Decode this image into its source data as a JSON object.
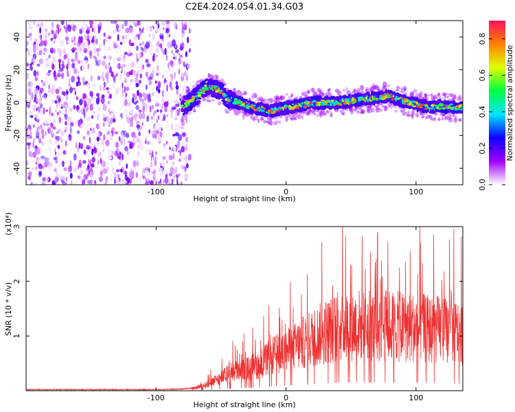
{
  "title": "C2E4.2024.054.01.34.G03",
  "chart_data": [
    {
      "type": "heatmap",
      "panel": "spectrogram",
      "xlabel": "Height of straight line (km)",
      "ylabel": "Frequency (Hz)",
      "xlim": [
        -200,
        136
      ],
      "ylim": [
        -50,
        50
      ],
      "x_ticks": [
        -100,
        0,
        100
      ],
      "y_ticks": [
        -40,
        -20,
        0,
        20,
        40
      ],
      "x_tick_labels": [
        "-100",
        "0",
        "100"
      ],
      "y_tick_labels": [
        "-40",
        "-20",
        "0",
        "20",
        "40"
      ],
      "noise_region_x": [
        -200,
        -80
      ],
      "ridge": {
        "x": [
          -80,
          -70,
          -62,
          -55,
          -50,
          -45,
          -40,
          -30,
          -20,
          -10,
          0,
          10,
          20,
          30,
          40,
          50,
          60,
          70,
          80,
          90,
          100,
          110,
          120,
          130,
          136
        ],
        "y": [
          -3,
          3,
          9,
          9,
          7,
          2,
          1,
          -2,
          -4,
          -5,
          -3,
          -2,
          0,
          0,
          0,
          1,
          2,
          3,
          4,
          1,
          -1,
          -3,
          -2,
          -3,
          -3
        ]
      },
      "colorbar": {
        "label": "Normalized spectral amplitude",
        "range": [
          0,
          0.9
        ],
        "ticks": [
          0,
          0.2,
          0.4,
          0.6,
          0.8
        ],
        "tick_labels": [
          "0.0",
          "0.2",
          "0.4",
          "0.6",
          "0.8"
        ],
        "colors": [
          "#ffffff",
          "#a000ff",
          "#1000ff",
          "#00e5ff",
          "#00ff40",
          "#e0ff00",
          "#ff8000",
          "#ff1060"
        ]
      }
    },
    {
      "type": "line",
      "panel": "snr",
      "xlabel": "Height of straight line (km)",
      "ylabel": "SNR (10 * v/v)",
      "y_multiplier_label": "(x10⁴)",
      "xlim": [
        -200,
        136
      ],
      "ylim": [
        0,
        3
      ],
      "x_ticks": [
        -100,
        0,
        100
      ],
      "y_ticks": [
        1,
        2,
        3
      ],
      "x_tick_labels": [
        "-100",
        "0",
        "100"
      ],
      "y_tick_labels": [
        "1",
        "2",
        "3"
      ],
      "color": "#ee3030",
      "envelope": {
        "x": [
          -200,
          -100,
          -80,
          -70,
          -60,
          -50,
          -40,
          -30,
          -20,
          -10,
          0,
          10,
          20,
          30,
          40,
          50,
          60,
          70,
          80,
          90,
          100,
          110,
          120,
          130,
          136
        ],
        "y": [
          0.02,
          0.02,
          0.03,
          0.06,
          0.15,
          0.3,
          0.45,
          0.5,
          0.6,
          0.8,
          0.9,
          1.05,
          1.2,
          1.35,
          1.45,
          1.5,
          1.5,
          1.45,
          1.5,
          1.45,
          1.45,
          1.4,
          1.4,
          1.35,
          1.3
        ]
      }
    }
  ]
}
